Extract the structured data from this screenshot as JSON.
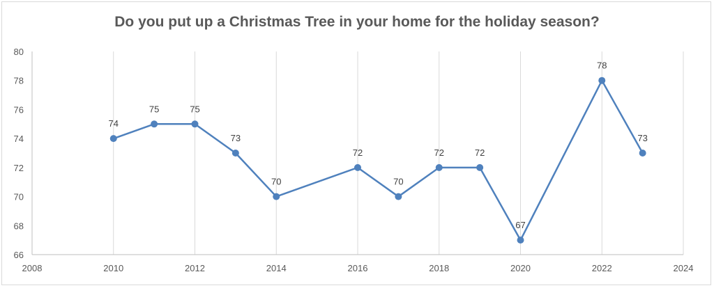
{
  "chart_data": {
    "type": "scatter",
    "title": "Do you put up a Christmas Tree in your home for the holiday season?",
    "xlabel": "",
    "ylabel": "",
    "x": [
      2010,
      2011,
      2012,
      2013,
      2014,
      2016,
      2017,
      2018,
      2019,
      2020,
      2022,
      2023
    ],
    "y": [
      74,
      75,
      75,
      73,
      70,
      72,
      70,
      72,
      72,
      67,
      78,
      73
    ],
    "data_labels": [
      "74",
      "75",
      "75",
      "73",
      "70",
      "72",
      "70",
      "72",
      "72",
      "67",
      "78",
      "73"
    ],
    "xlim": [
      2008,
      2024
    ],
    "ylim": [
      66,
      80
    ],
    "x_ticks": [
      2008,
      2010,
      2012,
      2014,
      2016,
      2018,
      2020,
      2022,
      2024
    ],
    "x_tick_labels": [
      "2008",
      "2010",
      "2012",
      "2014",
      "2016",
      "2018",
      "2020",
      "2022",
      "2024"
    ],
    "y_ticks": [
      66,
      68,
      70,
      72,
      74,
      76,
      78,
      80
    ],
    "y_tick_labels": [
      "66",
      "68",
      "70",
      "72",
      "74",
      "76",
      "78",
      "80"
    ],
    "lines_connected": true,
    "grid": "vertical",
    "legend": "none",
    "series_color": "#4f81bd",
    "grid_color": "#d9d9d9",
    "axis_color": "#bfbfbf"
  }
}
